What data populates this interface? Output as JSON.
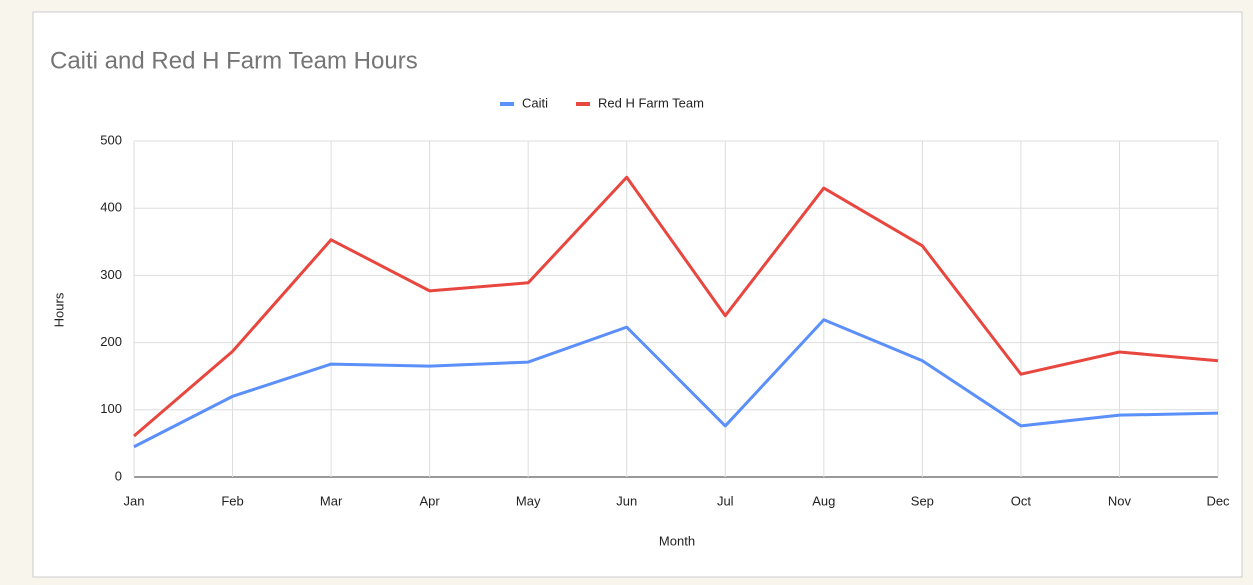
{
  "chart_data": {
    "type": "line",
    "title": "Caiti and Red H Farm Team Hours",
    "x_label": "Month",
    "y_label": "Hours",
    "categories": [
      "Jan",
      "Feb",
      "Mar",
      "Apr",
      "May",
      "Jun",
      "Jul",
      "Aug",
      "Sep",
      "Oct",
      "Nov",
      "Dec"
    ],
    "series": [
      {
        "name": "Caiti",
        "color": "#5b8ff9",
        "values": [
          45,
          120,
          168,
          165,
          171,
          223,
          76,
          234,
          173,
          76,
          92,
          95
        ]
      },
      {
        "name": "Red H Farm Team",
        "color": "#e8473f",
        "values": [
          61,
          187,
          353,
          277,
          289,
          446,
          240,
          430,
          344,
          153,
          186,
          173
        ]
      }
    ],
    "ylim": [
      0,
      500
    ],
    "yticks": [
      0,
      100,
      200,
      300,
      400,
      500
    ],
    "grid": true,
    "legend": "top"
  }
}
